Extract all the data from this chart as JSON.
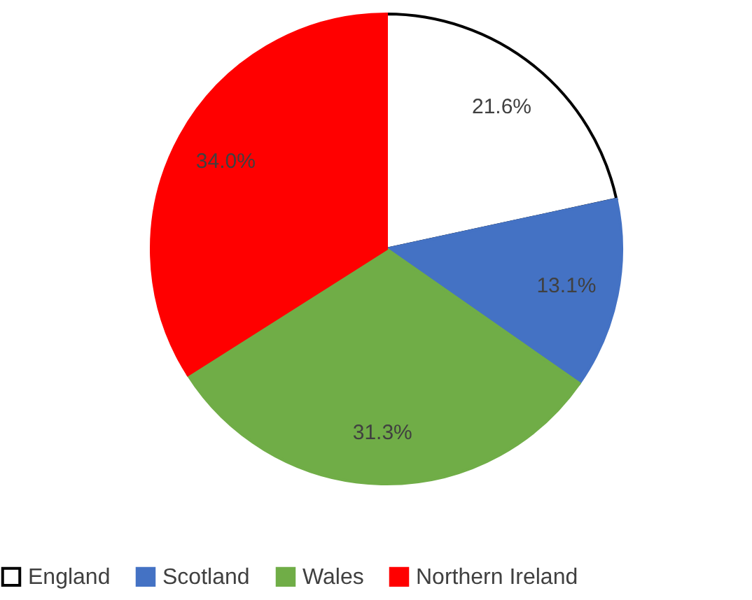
{
  "chart_data": {
    "type": "pie",
    "categories": [
      "England",
      "Scotland",
      "Wales",
      "Northern Ireland"
    ],
    "values": [
      21.6,
      13.1,
      31.3,
      34.0
    ],
    "colors": [
      "#ffffff",
      "#4472c4",
      "#70ad47",
      "#ff0000"
    ],
    "data_labels": true,
    "value_labels": [
      "21.6%",
      "13.1%",
      "31.3%",
      "34.0%"
    ],
    "legend": "bottom"
  }
}
